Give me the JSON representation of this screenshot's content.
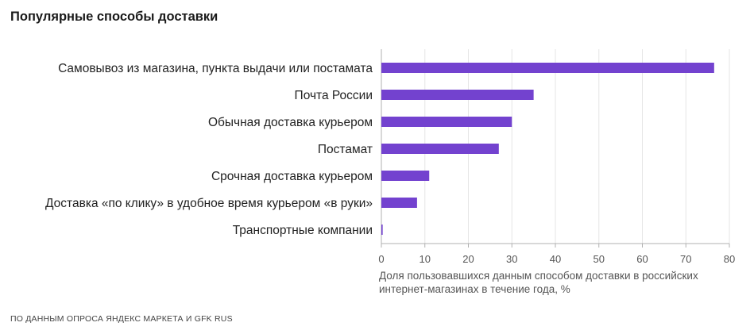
{
  "title": "Популярные способы доставки",
  "source": "ПО ДАННЫМ ОПРОСА ЯНДЕКС МАРКЕТА И GFK RUS",
  "colors": {
    "bar": "#7342cf",
    "grid": "#e6e6e6",
    "axis": "#b0b0b0",
    "tick_text": "#555555",
    "label_text": "#222222"
  },
  "chart_data": {
    "type": "bar",
    "orientation": "horizontal",
    "categories": [
      "Самовывоз из магазина, пункта выдачи или постамата",
      "Почта России",
      "Обычная доставка курьером",
      "Постамат",
      "Срочная доставка курьером",
      "Доставка «по клику» в удобное время курьером «в руки»",
      "Транспортные компании"
    ],
    "values": [
      76.5,
      35,
      30,
      27,
      11,
      8.2,
      0.3
    ],
    "title": "Популярные способы доставки",
    "xlabel": "Доля пользовавшихся данным способом доставки в российских интернет-магазинах в течение года, %",
    "ylabel": "",
    "xlim": [
      0,
      80
    ],
    "xticks": [
      "0",
      "10",
      "20",
      "30",
      "40",
      "50",
      "60",
      "70",
      "80"
    ],
    "grid": "vertical",
    "legend": "none"
  }
}
